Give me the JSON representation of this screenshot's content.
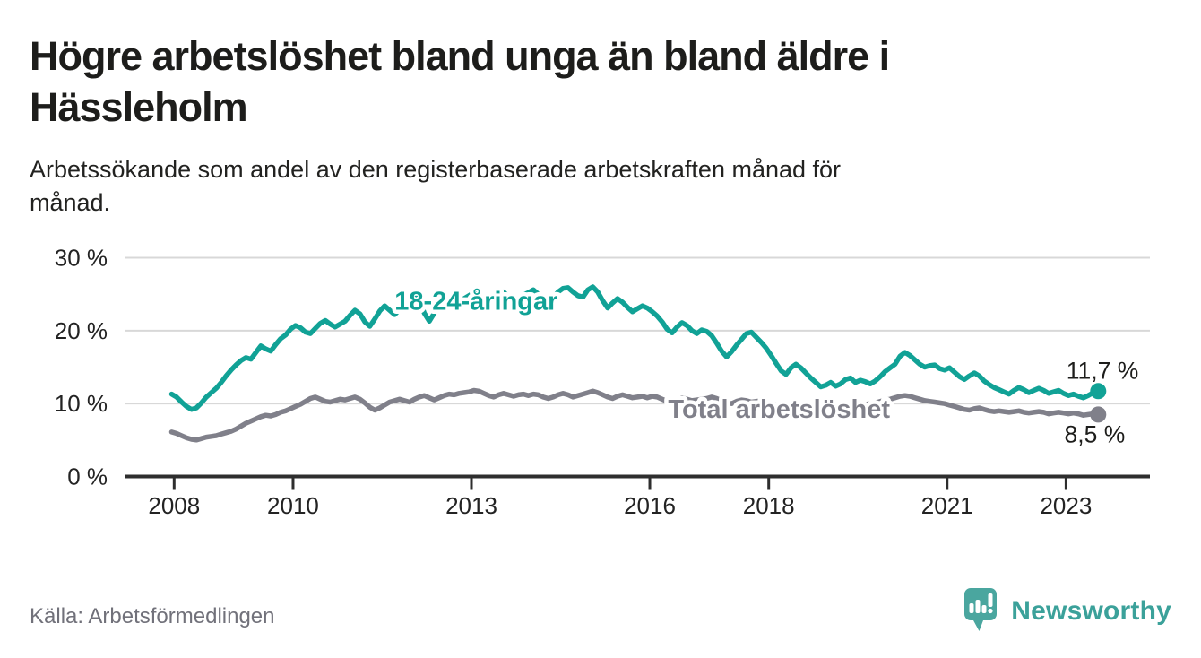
{
  "header": {
    "title_lines": [
      "Högre arbetslöshet bland unga än bland äldre i",
      "Hässleholm"
    ],
    "subtitle_lines": [
      "Arbetssökande som andel av den registerbaserade arbetskraften månad för",
      "månad."
    ]
  },
  "footer": {
    "source": "Källa: Arbetsförmedlingen",
    "brand_name": "Newsworthy"
  },
  "colors": {
    "young_line": "#11a296",
    "total_line": "#80808a",
    "grid": "#d8d8d8",
    "axis": "#2e2e2e",
    "axis_text": "#232323",
    "value_text": "#1d1d1b",
    "title_text": "#1d1d1b",
    "muted_text": "#71717a",
    "logo_bubble": "#4aa69f",
    "logo_glyph": "#ffffff",
    "brand_text": "#3ba19a",
    "background": "#ffffff"
  },
  "chart_data": {
    "type": "line",
    "unit": "%",
    "frequency": "monthly",
    "x_start": {
      "year": 2008,
      "month": 1
    },
    "x_end": {
      "year": 2023,
      "month": 8
    },
    "ylim": [
      0,
      30
    ],
    "grid": true,
    "legend_position": "inline",
    "y_ticks": [
      {
        "value": 30,
        "label": "30 %"
      },
      {
        "value": 20,
        "label": "20 %"
      },
      {
        "value": 10,
        "label": "10 %"
      },
      {
        "value": 0,
        "label": "0 %"
      }
    ],
    "x_ticks": [
      {
        "year": 2008,
        "label": "2008"
      },
      {
        "year": 2010,
        "label": "2010"
      },
      {
        "year": 2013,
        "label": "2013"
      },
      {
        "year": 2016,
        "label": "2016"
      },
      {
        "year": 2018,
        "label": "2018"
      },
      {
        "year": 2021,
        "label": "2021"
      },
      {
        "year": 2023,
        "label": "2023"
      }
    ],
    "series": [
      {
        "id": "young",
        "name": "18-24-åringar",
        "inline_label": "18-24-åringar",
        "inline_label_anchor": {
          "year": 2011.75,
          "value": 24.1
        },
        "end_value": 11.7,
        "end_label": "11,7 %",
        "color_key": "young_line",
        "values": [
          11.3,
          10.9,
          10.2,
          9.6,
          9.2,
          9.4,
          10.1,
          10.9,
          11.5,
          12.1,
          12.9,
          13.8,
          14.6,
          15.3,
          15.9,
          16.3,
          16.1,
          17.0,
          17.9,
          17.5,
          17.2,
          18.1,
          18.9,
          19.4,
          20.2,
          20.7,
          20.4,
          19.8,
          19.6,
          20.3,
          21.0,
          21.4,
          20.9,
          20.5,
          20.9,
          21.3,
          22.1,
          22.8,
          22.3,
          21.2,
          20.6,
          21.6,
          22.7,
          23.4,
          22.8,
          22.2,
          22.9,
          23.7,
          24.5,
          25.1,
          24.3,
          22.4,
          21.3,
          22.4,
          23.6,
          24.3,
          23.8,
          23.3,
          23.9,
          24.4,
          24.8,
          25.2,
          24.6,
          23.7,
          23.3,
          24.1,
          24.9,
          25.3,
          24.6,
          24.0,
          24.5,
          24.9,
          25.2,
          25.6,
          25.0,
          24.2,
          23.7,
          24.5,
          25.3,
          25.8,
          25.9,
          25.3,
          24.8,
          24.6,
          25.6,
          26.0,
          25.3,
          24.1,
          23.1,
          23.8,
          24.4,
          23.9,
          23.2,
          22.6,
          23.0,
          23.4,
          23.1,
          22.6,
          22.0,
          21.2,
          20.2,
          19.7,
          20.5,
          21.1,
          20.7,
          20.0,
          19.6,
          20.1,
          19.9,
          19.3,
          18.3,
          17.2,
          16.4,
          17.1,
          18.0,
          18.8,
          19.6,
          19.8,
          19.1,
          18.4,
          17.6,
          16.6,
          15.5,
          14.5,
          14.0,
          14.9,
          15.4,
          14.9,
          14.2,
          13.5,
          12.9,
          12.3,
          12.5,
          12.9,
          12.4,
          12.7,
          13.3,
          13.5,
          12.9,
          13.2,
          13.0,
          12.7,
          13.1,
          13.7,
          14.4,
          14.9,
          15.4,
          16.5,
          17.0,
          16.6,
          16.0,
          15.4,
          15.0,
          15.2,
          15.3,
          14.8,
          14.6,
          14.9,
          14.3,
          13.7,
          13.3,
          13.8,
          14.2,
          13.8,
          13.1,
          12.6,
          12.2,
          11.9,
          11.6,
          11.3,
          11.8,
          12.2,
          11.9,
          11.5,
          11.8,
          12.1,
          11.8,
          11.4,
          11.6,
          11.8,
          11.4,
          11.1,
          11.3,
          11.0,
          10.8,
          11.1,
          11.5,
          11.7
        ]
      },
      {
        "id": "total",
        "name": "Total arbetslöshet",
        "inline_label": "Total arbetslöshet",
        "inline_label_anchor": {
          "year": 2016.35,
          "value": 9.3
        },
        "end_value": 8.5,
        "end_label": "8,5 %",
        "color_key": "total_line",
        "values": [
          6.1,
          5.9,
          5.6,
          5.3,
          5.1,
          5.0,
          5.2,
          5.4,
          5.5,
          5.6,
          5.8,
          6.0,
          6.2,
          6.5,
          6.9,
          7.3,
          7.6,
          7.9,
          8.2,
          8.4,
          8.3,
          8.5,
          8.8,
          9.0,
          9.3,
          9.6,
          9.9,
          10.3,
          10.7,
          10.9,
          10.6,
          10.3,
          10.2,
          10.4,
          10.6,
          10.5,
          10.7,
          10.9,
          10.6,
          10.1,
          9.5,
          9.1,
          9.4,
          9.8,
          10.2,
          10.4,
          10.6,
          10.4,
          10.2,
          10.6,
          10.9,
          11.1,
          10.8,
          10.5,
          10.8,
          11.1,
          11.3,
          11.2,
          11.4,
          11.5,
          11.6,
          11.8,
          11.7,
          11.4,
          11.1,
          10.9,
          11.2,
          11.4,
          11.2,
          11.0,
          11.2,
          11.3,
          11.1,
          11.3,
          11.2,
          10.9,
          10.7,
          10.9,
          11.2,
          11.4,
          11.2,
          10.9,
          11.1,
          11.3,
          11.5,
          11.7,
          11.5,
          11.2,
          10.9,
          10.7,
          11.0,
          11.2,
          11.0,
          10.8,
          10.9,
          11.0,
          10.8,
          11.0,
          10.9,
          10.6,
          10.3,
          10.2,
          10.5,
          10.8,
          10.6,
          10.4,
          10.5,
          10.6,
          10.7,
          10.9,
          10.7,
          10.4,
          10.1,
          10.0,
          10.3,
          10.5,
          10.4,
          10.2,
          10.3,
          10.4,
          10.2,
          10.0,
          9.8,
          9.6,
          9.4,
          9.5,
          9.7,
          9.8,
          9.6,
          9.4,
          9.5,
          9.6,
          9.7,
          9.8,
          9.6,
          9.4,
          9.3,
          9.4,
          9.6,
          9.8,
          9.9,
          10.0,
          10.1,
          10.3,
          10.5,
          10.6,
          10.8,
          11.0,
          11.1,
          11.0,
          10.8,
          10.6,
          10.4,
          10.3,
          10.2,
          10.1,
          10.0,
          9.8,
          9.6,
          9.4,
          9.2,
          9.1,
          9.3,
          9.4,
          9.2,
          9.0,
          8.9,
          9.0,
          8.9,
          8.8,
          8.9,
          9.0,
          8.8,
          8.7,
          8.8,
          8.9,
          8.8,
          8.6,
          8.7,
          8.8,
          8.7,
          8.6,
          8.7,
          8.6,
          8.4,
          8.5,
          8.6,
          8.5
        ]
      }
    ]
  }
}
